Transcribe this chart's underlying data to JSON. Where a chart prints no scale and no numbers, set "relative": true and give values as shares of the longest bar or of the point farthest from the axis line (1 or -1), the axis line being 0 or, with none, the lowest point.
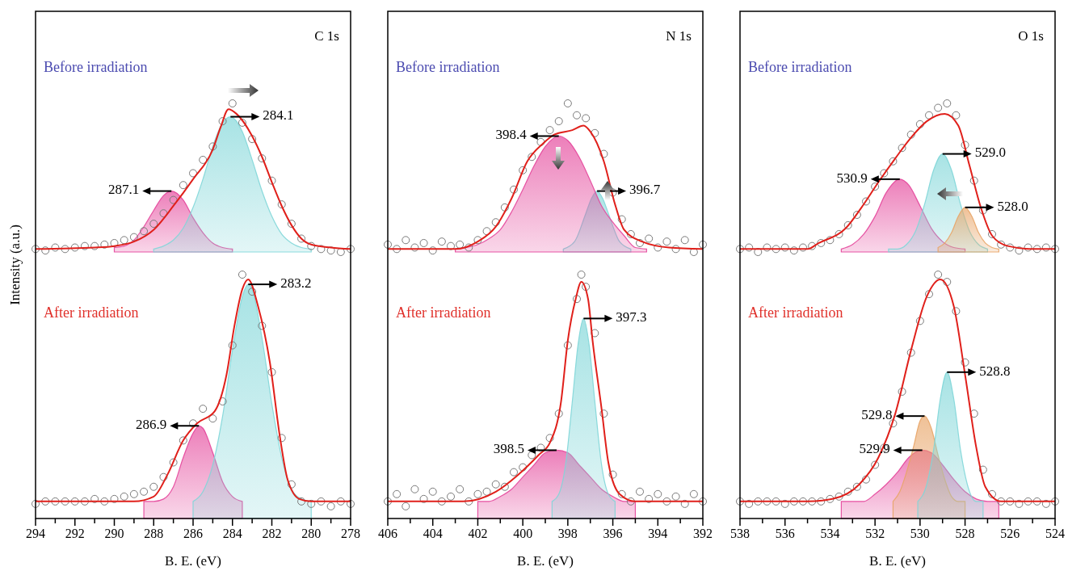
{
  "chart_data": [
    {
      "type": "line",
      "title": "C 1s",
      "subtitle": "Before irradiation",
      "ylabel": "Intensity (a.u.)",
      "xlim": [
        294,
        278
      ],
      "relative": true,
      "series": [
        {
          "type": "area",
          "color": "#e4449a",
          "x": [
            290,
            289.5,
            289,
            288.5,
            288,
            287.5,
            287.1,
            286.5,
            286,
            285.5,
            285,
            284.5,
            284
          ],
          "values": [
            0.03,
            0.04,
            0.08,
            0.17,
            0.28,
            0.38,
            0.41,
            0.35,
            0.23,
            0.13,
            0.06,
            0.03,
            0.02
          ]
        },
        {
          "type": "area",
          "color": "#7fd6d8",
          "x": [
            288,
            287.5,
            287,
            286.5,
            286,
            285.5,
            285,
            284.5,
            284.1,
            283.5,
            283,
            282.5,
            282,
            281.5,
            281,
            280.5,
            280
          ],
          "values": [
            0.02,
            0.04,
            0.08,
            0.16,
            0.3,
            0.49,
            0.71,
            0.87,
            0.91,
            0.81,
            0.62,
            0.41,
            0.24,
            0.12,
            0.06,
            0.03,
            0.02
          ]
        },
        {
          "type": "scatter",
          "color": "#7a7a7a",
          "marker": "circle",
          "x": [
            294,
            293.5,
            293,
            292.5,
            292,
            291.5,
            291,
            290.5,
            290,
            289.5,
            289,
            288.5,
            288,
            287.5,
            287,
            286.5,
            286,
            285.5,
            285,
            284.5,
            284,
            283.5,
            283,
            282.5,
            282,
            281.5,
            281,
            280.5,
            280,
            279.5,
            279,
            278.5,
            278
          ],
          "values": [
            0.02,
            0.01,
            0.03,
            0.02,
            0.03,
            0.04,
            0.04,
            0.05,
            0.06,
            0.08,
            0.1,
            0.14,
            0.19,
            0.26,
            0.35,
            0.45,
            0.53,
            0.62,
            0.71,
            0.88,
            1,
            0.87,
            0.76,
            0.63,
            0.48,
            0.32,
            0.19,
            0.09,
            0.04,
            0.02,
            0.01,
            0,
            0.02
          ]
        },
        {
          "type": "line",
          "color": "#e0201b",
          "x": [
            294,
            291,
            290,
            289,
            288,
            287,
            286,
            285,
            284.6,
            284.2,
            283.8,
            283,
            282.5,
            282,
            281.5,
            281,
            280.5,
            280,
            279,
            278
          ],
          "values": [
            0.02,
            0.03,
            0.04,
            0.07,
            0.15,
            0.31,
            0.49,
            0.69,
            0.84,
            0.96,
            0.93,
            0.78,
            0.64,
            0.47,
            0.31,
            0.18,
            0.09,
            0.05,
            0.03,
            0.02
          ]
        }
      ],
      "annotations": [
        {
          "text": "287.1",
          "x": 287.1,
          "y": 0.41
        },
        {
          "text": "284.1",
          "x": 284.1,
          "y": 0.91
        }
      ]
    },
    {
      "type": "line",
      "subtitle": "After irradiation",
      "xlabel": "B. E. (eV)",
      "xlim": [
        294,
        278
      ],
      "xticks": [
        294,
        {
          "value": 293,
          "label": null
        },
        292,
        {
          "value": 291,
          "label": null
        },
        290,
        {
          "value": 289,
          "label": null
        },
        288,
        {
          "value": 287,
          "label": null
        },
        286,
        {
          "value": 285,
          "label": null
        },
        284,
        {
          "value": 283,
          "label": null
        },
        282,
        {
          "value": 281,
          "label": null
        },
        280,
        {
          "value": 279,
          "label": null
        },
        278
      ],
      "relative": true,
      "series": [
        {
          "type": "area",
          "color": "#e4449a",
          "x": [
            288.5,
            288,
            287.5,
            287,
            286.5,
            286,
            285.7,
            285.5,
            285,
            284.5,
            284,
            283.5
          ],
          "values": [
            0.07,
            0.07,
            0.08,
            0.13,
            0.25,
            0.35,
            0.38,
            0.37,
            0.27,
            0.15,
            0.09,
            0.07
          ]
        },
        {
          "type": "area",
          "color": "#7fd6d8",
          "x": [
            286,
            285.5,
            285,
            284.5,
            284,
            283.5,
            283.2,
            283,
            282.5,
            282,
            281.5,
            281,
            280.5,
            280
          ],
          "values": [
            0.07,
            0.11,
            0.22,
            0.42,
            0.69,
            0.91,
            0.96,
            0.94,
            0.74,
            0.47,
            0.25,
            0.12,
            0.08,
            0.07
          ]
        },
        {
          "type": "scatter",
          "color": "#7a7a7a",
          "marker": "circle",
          "x": [
            294,
            293.5,
            293,
            292.5,
            292,
            291.5,
            291,
            290.5,
            290,
            289.5,
            289,
            288.5,
            288,
            287.5,
            287,
            286.5,
            286,
            285.5,
            285,
            284.5,
            284,
            283.5,
            283,
            282.5,
            282,
            281.5,
            281,
            280.5,
            280,
            279.5,
            279,
            278.5,
            278
          ],
          "values": [
            0.06,
            0.07,
            0.07,
            0.07,
            0.07,
            0.07,
            0.08,
            0.07,
            0.08,
            0.09,
            0.1,
            0.11,
            0.13,
            0.17,
            0.23,
            0.32,
            0.39,
            0.45,
            0.41,
            0.48,
            0.71,
            1,
            0.93,
            0.79,
            0.6,
            0.33,
            0.14,
            0.07,
            0.06,
            0.07,
            0.05,
            0.07,
            0.06
          ]
        },
        {
          "type": "line",
          "color": "#e0201b",
          "x": [
            294,
            290,
            289,
            288,
            287.3,
            286.5,
            285.8,
            284.9,
            284.3,
            283.9,
            283.5,
            283.2,
            282.7,
            282.1,
            281.6,
            281.2,
            280.6,
            280,
            278
          ],
          "values": [
            0.07,
            0.07,
            0.07,
            0.09,
            0.18,
            0.32,
            0.39,
            0.44,
            0.59,
            0.79,
            0.94,
            0.98,
            0.87,
            0.64,
            0.34,
            0.16,
            0.08,
            0.07,
            0.07
          ]
        }
      ],
      "annotations": [
        {
          "text": "286.9",
          "x": 285.7,
          "y": 0.38
        },
        {
          "text": "283.2",
          "x": 283.2,
          "y": 0.96
        }
      ]
    },
    {
      "type": "line",
      "title": "N 1s",
      "subtitle": "Before irradiation",
      "xlim": [
        406,
        392
      ],
      "relative": true,
      "series": [
        {
          "type": "area",
          "color": "#7fd6d8",
          "x": [
            398.2,
            397.7,
            397.2,
            396.95,
            396.7,
            396.45,
            396.2,
            395.7,
            395.2
          ],
          "values": [
            0.02,
            0.07,
            0.26,
            0.36,
            0.41,
            0.36,
            0.26,
            0.07,
            0.02
          ]
        },
        {
          "type": "area",
          "color": "#e4449a",
          "x": [
            403,
            402.5,
            402,
            401.5,
            401,
            400.5,
            400,
            399.5,
            399,
            398.4,
            398,
            397.5,
            397,
            396.5,
            396,
            395.5,
            395,
            394.5
          ],
          "values": [
            0.02,
            0.03,
            0.05,
            0.09,
            0.15,
            0.27,
            0.42,
            0.58,
            0.71,
            0.78,
            0.75,
            0.64,
            0.48,
            0.31,
            0.2,
            0.11,
            0.03,
            0.02
          ]
        },
        {
          "type": "scatter",
          "color": "#7a7a7a",
          "marker": "circle",
          "x": [
            406,
            405.6,
            405.2,
            404.8,
            404.4,
            404,
            403.6,
            403.2,
            402.8,
            402.4,
            402,
            401.6,
            401.2,
            400.8,
            400.4,
            400,
            399.6,
            399.2,
            398.8,
            398.4,
            398,
            397.6,
            397.2,
            396.8,
            396.4,
            396,
            395.6,
            395.2,
            394.8,
            394.4,
            394,
            393.6,
            393.2,
            392.8,
            392.4,
            392
          ],
          "values": [
            0.05,
            0.02,
            0.08,
            0.03,
            0.06,
            0.01,
            0.07,
            0.04,
            0.05,
            0.03,
            0.08,
            0.14,
            0.2,
            0.3,
            0.42,
            0.55,
            0.64,
            0.74,
            0.82,
            0.88,
            1,
            0.92,
            0.9,
            0.8,
            0.66,
            0.4,
            0.22,
            0.12,
            0.06,
            0.09,
            0.03,
            0.07,
            0.02,
            0.08,
            0,
            0.05
          ]
        },
        {
          "type": "line",
          "color": "#e0201b",
          "x": [
            406,
            403,
            402,
            401.2,
            400.5,
            399.8,
            399.1,
            398.6,
            397.8,
            397.3,
            397,
            396.4,
            395.9,
            395.5,
            394.7,
            393.5,
            392
          ],
          "values": [
            0.02,
            0.02,
            0.07,
            0.17,
            0.36,
            0.61,
            0.73,
            0.79,
            0.82,
            0.85,
            0.81,
            0.61,
            0.32,
            0.15,
            0.07,
            0.03,
            0.02
          ]
        }
      ],
      "annotations": [
        {
          "text": "398.4",
          "x": 398.4,
          "y": 0.78
        },
        {
          "text": "396.7",
          "x": 396.7,
          "y": 0.41
        }
      ]
    },
    {
      "type": "line",
      "subtitle": "After irradiation",
      "xlabel": "B. E. (eV)",
      "xlim": [
        406,
        392
      ],
      "xticks": [
        406,
        {
          "value": 405,
          "label": null
        },
        404,
        {
          "value": 403,
          "label": null
        },
        402,
        {
          "value": 401,
          "label": null
        },
        400,
        {
          "value": 399,
          "label": null
        },
        398,
        {
          "value": 397,
          "label": null
        },
        396,
        {
          "value": 395,
          "label": null
        },
        394,
        {
          "value": 393,
          "label": null
        },
        392
      ],
      "relative": true,
      "series": [
        {
          "type": "area",
          "color": "#e4449a",
          "x": [
            402,
            401.5,
            401,
            400.5,
            400,
            399.5,
            399,
            398.5,
            398,
            397.5,
            397,
            396.5,
            396,
            395.5,
            395
          ],
          "values": [
            0.07,
            0.07,
            0.09,
            0.12,
            0.17,
            0.22,
            0.27,
            0.28,
            0.27,
            0.22,
            0.17,
            0.12,
            0.09,
            0.07,
            0.07
          ]
        },
        {
          "type": "area",
          "color": "#7fd6d8",
          "x": [
            398.7,
            398.4,
            398.1,
            397.8,
            397.55,
            397.3,
            397.05,
            396.8,
            396.5,
            396.2,
            395.9
          ],
          "values": [
            0.07,
            0.1,
            0.22,
            0.48,
            0.71,
            0.82,
            0.71,
            0.48,
            0.22,
            0.1,
            0.07
          ]
        },
        {
          "type": "scatter",
          "color": "#7a7a7a",
          "marker": "circle",
          "x": [
            406,
            405.6,
            405.2,
            404.8,
            404.4,
            404,
            403.6,
            403.2,
            402.8,
            402.4,
            402,
            401.6,
            401.2,
            400.8,
            400.4,
            400,
            399.6,
            399.2,
            398.8,
            398.4,
            398,
            397.6,
            397.4,
            397.2,
            396.8,
            396.4,
            396,
            395.6,
            395.2,
            394.8,
            394.4,
            394,
            393.6,
            393.2,
            392.8,
            392.4,
            392
          ],
          "values": [
            0.07,
            0.1,
            0.05,
            0.12,
            0.08,
            0.11,
            0.07,
            0.09,
            0.12,
            0.07,
            0.1,
            0.11,
            0.14,
            0.13,
            0.19,
            0.21,
            0.26,
            0.29,
            0.33,
            0.43,
            0.71,
            0.9,
            1,
            0.95,
            0.76,
            0.43,
            0.18,
            0.1,
            0.07,
            0.11,
            0.08,
            0.1,
            0.07,
            0.09,
            0.06,
            0.1,
            0.07
          ]
        },
        {
          "type": "line",
          "color": "#e0201b",
          "x": [
            406,
            403,
            402.65,
            401.2,
            400.2,
            399.3,
            398.8,
            398.3,
            398,
            397.65,
            397.4,
            397.1,
            396.9,
            396.5,
            396.2,
            395.7,
            395,
            394,
            392
          ],
          "values": [
            0.07,
            0.07,
            0.07,
            0.11,
            0.18,
            0.26,
            0.31,
            0.48,
            0.73,
            0.9,
            0.97,
            0.9,
            0.73,
            0.45,
            0.23,
            0.1,
            0.07,
            0.07,
            0.07
          ]
        }
      ],
      "annotations": [
        {
          "text": "397.3",
          "x": 397.3,
          "y": 0.82
        },
        {
          "text": "398.5",
          "x": 398.5,
          "y": 0.28
        }
      ]
    },
    {
      "type": "line",
      "title": "O 1s",
      "subtitle": "Before irradiation",
      "xlim": [
        538,
        524
      ],
      "relative": true,
      "series": [
        {
          "type": "area",
          "color": "#e4449a",
          "x": [
            533.5,
            533,
            532.5,
            532,
            531.5,
            530.9,
            530.5,
            530,
            529.5,
            529,
            528.5,
            528
          ],
          "values": [
            0.02,
            0.05,
            0.12,
            0.24,
            0.4,
            0.49,
            0.45,
            0.31,
            0.16,
            0.07,
            0.03,
            0.02
          ]
        },
        {
          "type": "area",
          "color": "#7fd6d8",
          "x": [
            531.4,
            531,
            530.6,
            530.2,
            529.8,
            529.4,
            529,
            528.6,
            528.2,
            527.8,
            527.4,
            527
          ],
          "values": [
            0.02,
            0.02,
            0.05,
            0.14,
            0.32,
            0.55,
            0.66,
            0.55,
            0.32,
            0.14,
            0.05,
            0.02
          ]
        },
        {
          "type": "area",
          "color": "#e8a466",
          "x": [
            529.2,
            528.9,
            528.6,
            528.3,
            528,
            527.7,
            527.4,
            527.1,
            526.8,
            526.5
          ],
          "values": [
            0.03,
            0.06,
            0.13,
            0.24,
            0.3,
            0.24,
            0.13,
            0.06,
            0.03,
            0.02
          ]
        },
        {
          "type": "scatter",
          "color": "#7a7a7a",
          "marker": "circle",
          "x": [
            538,
            537.6,
            537.2,
            536.8,
            536.4,
            536,
            535.6,
            535.2,
            534.8,
            534.4,
            534,
            533.6,
            533.2,
            532.8,
            532.4,
            532,
            531.6,
            531.2,
            530.8,
            530.4,
            530,
            529.6,
            529.2,
            528.8,
            528.4,
            528,
            527.6,
            527.2,
            526.8,
            526.4,
            526,
            525.6,
            525.2,
            524.8,
            524.4,
            524
          ],
          "values": [
            0.02,
            0.03,
            0,
            0.03,
            0.02,
            0.03,
            0.01,
            0.03,
            0.04,
            0.06,
            0.08,
            0.12,
            0.18,
            0.25,
            0.34,
            0.44,
            0.53,
            0.61,
            0.7,
            0.79,
            0.86,
            0.92,
            0.97,
            1,
            0.92,
            0.72,
            0.48,
            0.28,
            0.12,
            0.05,
            0.03,
            0.01,
            0.03,
            0.02,
            0.03,
            0.02
          ]
        },
        {
          "type": "line",
          "color": "#e0201b",
          "x": [
            538,
            535,
            534.5,
            533.3,
            532.6,
            531.85,
            531.1,
            530.4,
            529.7,
            528.9,
            528.3,
            527.8,
            527.3,
            526.8,
            526.1,
            525,
            524
          ],
          "values": [
            0.02,
            0.02,
            0.06,
            0.16,
            0.3,
            0.47,
            0.63,
            0.77,
            0.88,
            0.93,
            0.85,
            0.58,
            0.3,
            0.11,
            0.04,
            0.02,
            0.02
          ]
        }
      ],
      "annotations": [
        {
          "text": "530.9",
          "x": 530.9,
          "y": 0.49
        },
        {
          "text": "529.0",
          "x": 529,
          "y": 0.66
        },
        {
          "text": "528.0",
          "x": 528,
          "y": 0.3
        }
      ]
    },
    {
      "type": "line",
      "subtitle": "After irradiation",
      "xlabel": "B. E. (eV)",
      "xlim": [
        538,
        524
      ],
      "xticks": [
        538,
        {
          "value": 537,
          "label": null
        },
        536,
        {
          "value": 535,
          "label": null
        },
        534,
        {
          "value": 533,
          "label": null
        },
        532,
        {
          "value": 531,
          "label": null
        },
        530,
        {
          "value": 529,
          "label": null
        },
        528,
        {
          "value": 527,
          "label": null
        },
        526,
        {
          "value": 525,
          "label": null
        },
        524
      ],
      "relative": true,
      "series": [
        {
          "type": "area",
          "color": "#e4449a",
          "x": [
            533.5,
            533,
            532.5,
            532,
            531.5,
            531,
            530.5,
            529.9,
            529.5,
            529,
            528.5,
            528,
            527.5,
            527,
            526.5
          ],
          "values": [
            0.07,
            0.07,
            0.07,
            0.1,
            0.14,
            0.19,
            0.25,
            0.28,
            0.27,
            0.22,
            0.16,
            0.11,
            0.08,
            0.07,
            0.07
          ]
        },
        {
          "type": "area",
          "color": "#e8a466",
          "x": [
            531.2,
            530.9,
            530.6,
            530.3,
            530,
            529.8,
            529.5,
            529.2,
            528.9,
            528.6,
            528.3,
            528
          ],
          "values": [
            0.07,
            0.11,
            0.19,
            0.29,
            0.4,
            0.42,
            0.37,
            0.26,
            0.16,
            0.09,
            0.07,
            0.07
          ]
        },
        {
          "type": "area",
          "color": "#7fd6d8",
          "x": [
            530.1,
            529.7,
            529.4,
            529.1,
            528.8,
            528.5,
            528.2,
            527.9,
            527.5,
            527.2
          ],
          "values": [
            0.07,
            0.14,
            0.28,
            0.49,
            0.6,
            0.49,
            0.28,
            0.14,
            0.07,
            0.07
          ]
        },
        {
          "type": "scatter",
          "color": "#7a7a7a",
          "marker": "circle",
          "x": [
            538,
            537.6,
            537.2,
            536.8,
            536.4,
            536,
            535.6,
            535.2,
            534.8,
            534.4,
            534,
            533.6,
            533.2,
            532.8,
            532.4,
            532,
            531.6,
            531.2,
            530.8,
            530.4,
            530,
            529.6,
            529.2,
            528.8,
            528.4,
            528,
            527.6,
            527.2,
            526.8,
            526.4,
            526,
            525.6,
            525.2,
            524.8,
            524.4,
            524
          ],
          "values": [
            0.07,
            0.06,
            0.07,
            0.07,
            0.07,
            0.06,
            0.07,
            0.07,
            0.07,
            0.07,
            0.08,
            0.09,
            0.11,
            0.13,
            0.16,
            0.22,
            0.29,
            0.39,
            0.52,
            0.68,
            0.81,
            0.92,
            1,
            0.97,
            0.85,
            0.64,
            0.43,
            0.2,
            0.1,
            0.07,
            0.07,
            0.06,
            0.07,
            0.07,
            0.06,
            0.07
          ]
        },
        {
          "type": "line",
          "color": "#e0201b",
          "x": [
            538,
            535,
            533.9,
            532.7,
            531.85,
            531.1,
            530.4,
            529.7,
            529.1,
            528.5,
            528,
            527.5,
            527.1,
            526.4,
            525,
            524
          ],
          "values": [
            0.07,
            0.07,
            0.08,
            0.14,
            0.25,
            0.43,
            0.69,
            0.91,
            0.98,
            0.87,
            0.59,
            0.29,
            0.13,
            0.07,
            0.07,
            0.07
          ]
        }
      ],
      "annotations": [
        {
          "text": "528.8",
          "x": 528.8,
          "y": 0.6
        },
        {
          "text": "529.8",
          "x": 529.8,
          "y": 0.42
        },
        {
          "text": "529.9",
          "x": 529.9,
          "y": 0.28
        }
      ]
    }
  ]
}
